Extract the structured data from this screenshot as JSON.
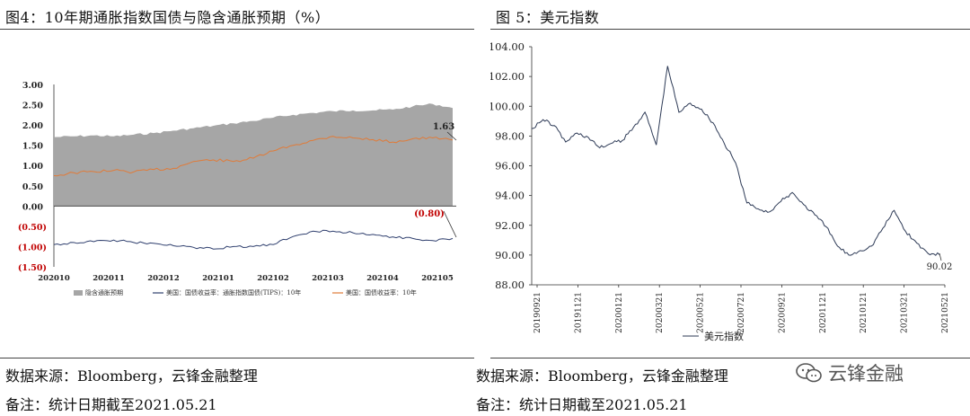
{
  "left_title": "图4：10年期通胀指数国债与隐含通胀预期（%）",
  "right_title": "图 5：美元指数",
  "left_source": "数据来源：Bloomberg，云锋金融整理",
  "left_note": "备注：统计日期截至2021.05.21",
  "right_source": "数据来源：Bloomberg，云锋金融整理",
  "right_note": "备注：统计日期截至2021.05.21",
  "watermark": "云锋金融",
  "colors": {
    "area": "#a6a6a6",
    "orange": "#e07b39",
    "navy": "#2f3f6e",
    "red": "#c00000",
    "dollar": "#2d3a56"
  },
  "chart_data": [
    {
      "type": "area",
      "title": "10年期通胀指数国债与隐含通胀预期（%）",
      "x_ticks": [
        "202010",
        "202011",
        "202012",
        "202101",
        "202102",
        "202103",
        "202104",
        "202105"
      ],
      "y_ticks_upper": [
        "3.00",
        "2.50",
        "2.00",
        "1.50",
        "1.00",
        "0.50",
        "0.00"
      ],
      "y_ticks_lower": [
        "(0.50)",
        "(1.00)",
        "(1.50)"
      ],
      "ylim": [
        -1.5,
        3.0
      ],
      "legend": [
        "隐含通胀预期",
        "美国：国债收益率：通胀指数国债(TIPS)：10年",
        "美国：国债收益率：10年"
      ],
      "annotations": {
        "upper_last": "1.63",
        "lower_last": "(0.80)"
      },
      "series": [
        {
          "name": "隐含通胀预期",
          "values": [
            1.7,
            1.72,
            1.74,
            1.72,
            1.76,
            1.8,
            1.86,
            1.92,
            1.98,
            2.04,
            2.1,
            2.18,
            2.25,
            2.3,
            2.34,
            2.36,
            2.36,
            2.38,
            2.46,
            2.52,
            2.42
          ]
        },
        {
          "name": "美国：国债收益率：10年",
          "values": [
            0.75,
            0.82,
            0.85,
            0.88,
            0.84,
            0.9,
            0.93,
            1.1,
            1.14,
            1.1,
            1.18,
            1.36,
            1.5,
            1.62,
            1.72,
            1.68,
            1.64,
            1.58,
            1.66,
            1.68,
            1.63
          ]
        },
        {
          "name": "美国：国债收益率：通胀指数国债(TIPS)：10年",
          "values": [
            -0.95,
            -0.9,
            -0.88,
            -0.84,
            -0.9,
            -0.92,
            -0.98,
            -1.02,
            -1.06,
            -1.0,
            -1.0,
            -0.95,
            -0.75,
            -0.62,
            -0.62,
            -0.66,
            -0.7,
            -0.76,
            -0.8,
            -0.85,
            -0.8
          ]
        }
      ]
    },
    {
      "type": "line",
      "title": "美元指数",
      "x_ticks": [
        "20190921",
        "20191121",
        "20200121",
        "20200321",
        "20200521",
        "20200721",
        "20200921",
        "20201121",
        "20210121",
        "20210321",
        "20210521"
      ],
      "y_ticks": [
        "104.00",
        "102.00",
        "100.00",
        "98.00",
        "96.00",
        "94.00",
        "92.00",
        "90.00",
        "88.00"
      ],
      "ylim": [
        88,
        104
      ],
      "legend": [
        "美元指数"
      ],
      "annotations": {
        "last": "90.02"
      },
      "series": [
        {
          "name": "美元指数",
          "values": [
            98.5,
            99.1,
            98.7,
            97.6,
            98.2,
            97.9,
            97.2,
            97.5,
            97.7,
            98.6,
            99.6,
            97.4,
            102.7,
            99.6,
            100.2,
            99.8,
            98.9,
            97.5,
            96.2,
            93.5,
            93.1,
            92.9,
            93.6,
            94.2,
            93.4,
            92.7,
            91.9,
            90.6,
            90.0,
            90.3,
            90.6,
            91.8,
            93.0,
            91.6,
            90.8,
            90.1,
            90.02
          ]
        }
      ]
    }
  ]
}
